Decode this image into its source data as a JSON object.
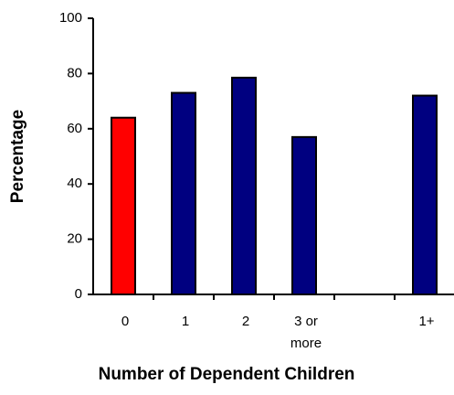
{
  "chart_data": {
    "type": "bar",
    "categories": [
      "0",
      "1",
      "2",
      "3 or more",
      null,
      "1+"
    ],
    "values": [
      64,
      73,
      78.5,
      57,
      null,
      72
    ],
    "colors": [
      "#ff0000",
      "#000080",
      "#000080",
      "#000080",
      null,
      "#000080"
    ],
    "ylim": [
      0,
      100
    ],
    "yticks": [
      0,
      20,
      40,
      60,
      80,
      100
    ],
    "y_label": "Percentage",
    "x_label": "Number of Dependent Children"
  }
}
